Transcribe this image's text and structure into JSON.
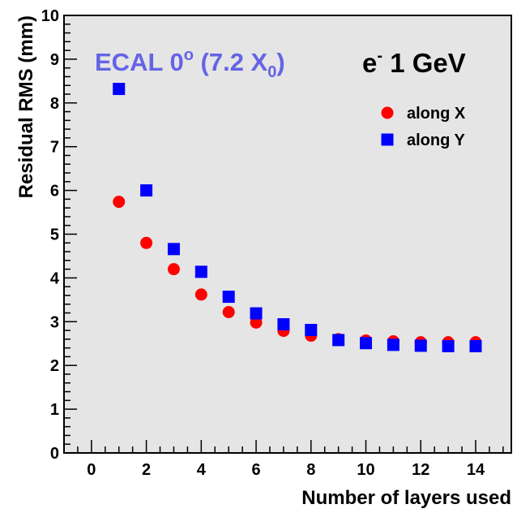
{
  "chart_data": {
    "type": "scatter",
    "xlabel": "Number of layers used",
    "ylabel": "Residual RMS (mm)",
    "xlim": [
      -1,
      15.3
    ],
    "ylim": [
      0,
      10
    ],
    "x_ticks": [
      0,
      2,
      4,
      6,
      8,
      10,
      12,
      14
    ],
    "y_ticks": [
      0,
      1,
      2,
      3,
      4,
      5,
      6,
      7,
      8,
      9,
      10
    ],
    "grid": false,
    "legend_position": "top-right",
    "plot_background": "#e5e5e5",
    "annotations": {
      "left": {
        "main": "ECAL 0",
        "sup": "o",
        "mid": " (7.2 X",
        "sub": "0",
        "end": ")",
        "color": "#6464e6"
      },
      "right": {
        "main": "e",
        "sup": "-",
        "end": " 1 GeV",
        "color": "#000000"
      }
    },
    "series": [
      {
        "name": "along X",
        "marker": "circle",
        "color": "#ff0000",
        "x": [
          1,
          2,
          3,
          4,
          5,
          6,
          7,
          8,
          9,
          10,
          11,
          12,
          13,
          14
        ],
        "y": [
          5.74,
          4.8,
          4.2,
          3.62,
          3.22,
          2.98,
          2.79,
          2.68,
          2.6,
          2.57,
          2.55,
          2.53,
          2.53,
          2.53
        ]
      },
      {
        "name": "along Y",
        "marker": "square",
        "color": "#0000ff",
        "x": [
          1,
          2,
          3,
          4,
          5,
          6,
          7,
          8,
          9,
          10,
          11,
          12,
          13,
          14
        ],
        "y": [
          8.32,
          6.0,
          4.66,
          4.14,
          3.57,
          3.19,
          2.94,
          2.81,
          2.58,
          2.51,
          2.47,
          2.45,
          2.44,
          2.44
        ]
      }
    ]
  }
}
